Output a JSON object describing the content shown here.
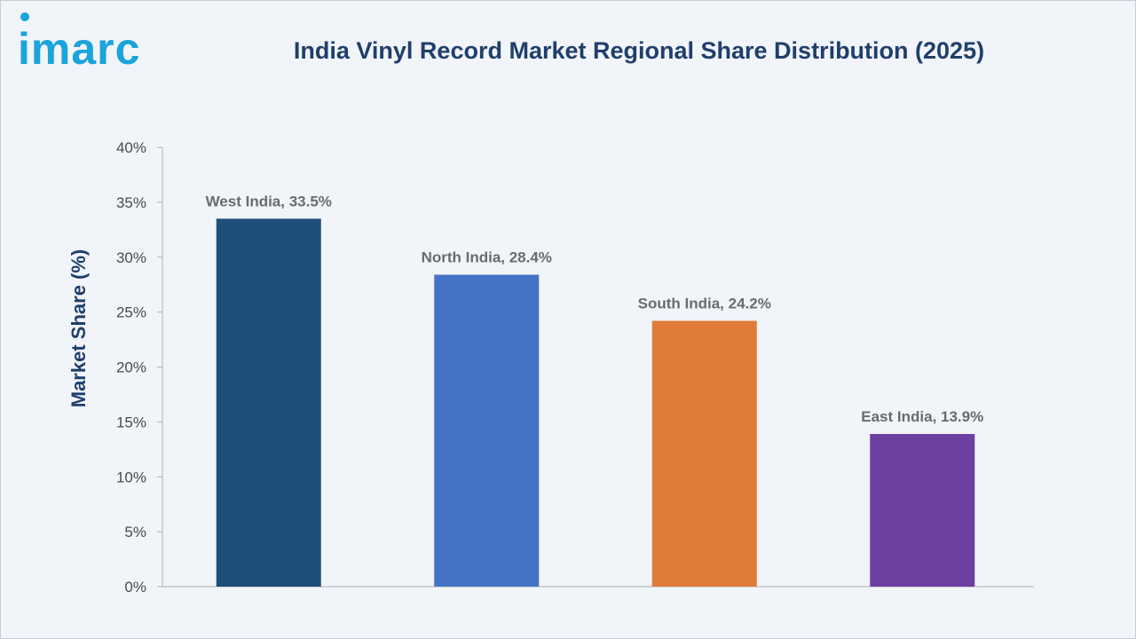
{
  "brand": {
    "logo_text": "imarc"
  },
  "chart_data": {
    "type": "bar",
    "title": "India Vinyl Record Market Regional Share Distribution (2025)",
    "ylabel": "Market Share (%)",
    "xlabel": "",
    "ylim": [
      0,
      40
    ],
    "yticks": [
      "0%",
      "5%",
      "10%",
      "15%",
      "20%",
      "25%",
      "30%",
      "35%",
      "40%"
    ],
    "ytick_values": [
      0,
      5,
      10,
      15,
      20,
      25,
      30,
      35,
      40
    ],
    "categories": [
      "West India",
      "North India",
      "South India",
      "East India"
    ],
    "values": [
      33.5,
      28.4,
      24.2,
      13.9
    ],
    "data_labels": [
      "West India, 33.5%",
      "North India, 28.4%",
      "South India, 24.2%",
      "East India, 13.9%"
    ],
    "colors": [
      "#1f4e79",
      "#4472c4",
      "#e07b39",
      "#6d3fa0"
    ],
    "grid": false
  }
}
